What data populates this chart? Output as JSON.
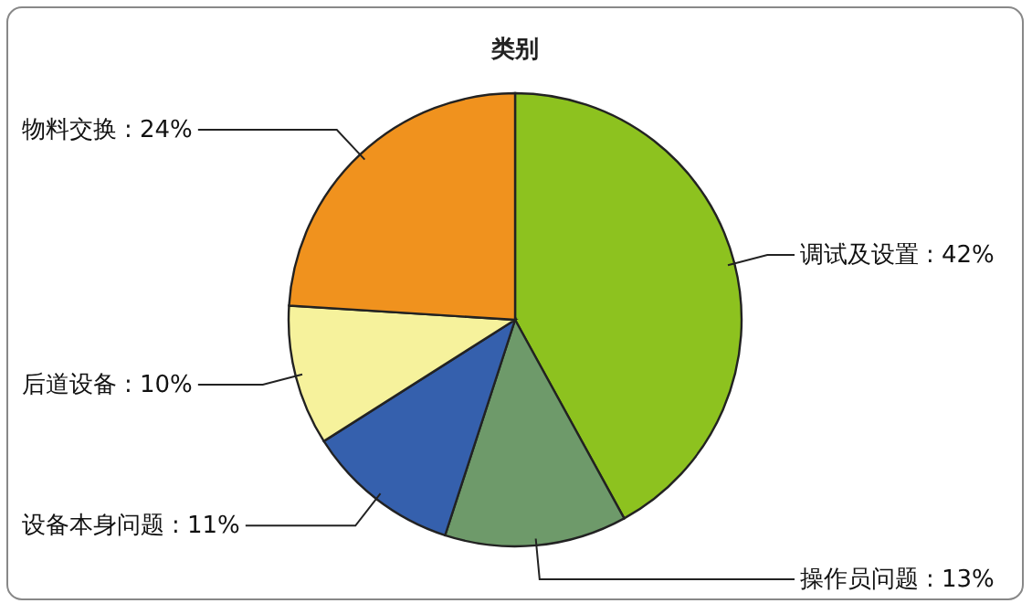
{
  "chart_data": {
    "type": "pie",
    "title": "类别",
    "categories": [
      "调试及设置",
      "操作员问题",
      "设备本身问题",
      "后道设备",
      "物料交换"
    ],
    "values": [
      42,
      13,
      11,
      10,
      24
    ],
    "colors": [
      "#8dc21f",
      "#6e9a6a",
      "#3560ad",
      "#f6f29c",
      "#f0921e"
    ],
    "value_labels": [
      ": 42%",
      ": 13%",
      ": 11%",
      ": 10%",
      ": 24%"
    ]
  }
}
